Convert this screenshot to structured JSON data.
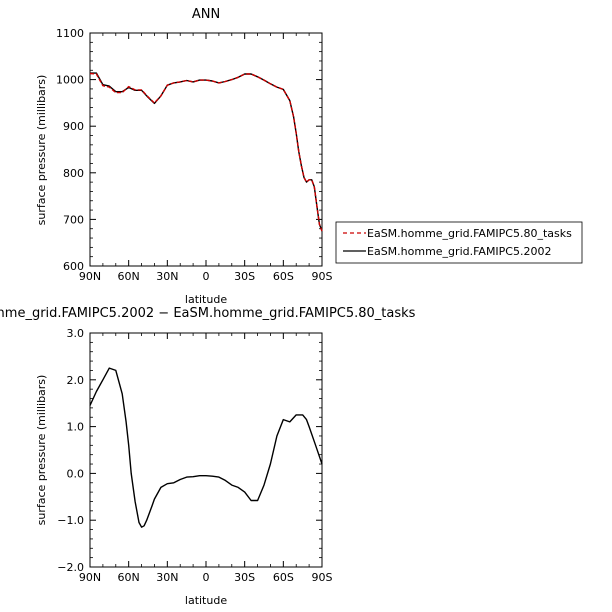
{
  "chart_data": [
    {
      "type": "line",
      "title": "ANN",
      "xlabel": "latitude",
      "ylabel": "surface pressure (millibars)",
      "ylim": [
        600,
        1100
      ],
      "yticks": [
        "600",
        "700",
        "800",
        "900",
        "1000",
        "1100"
      ],
      "xlim": [
        -90,
        90
      ],
      "xticks": [
        "90N",
        "60N",
        "30N",
        "0",
        "30S",
        "60S",
        "90S"
      ],
      "x": [
        -90,
        -85,
        -80,
        -75,
        -70,
        -65,
        -60,
        -55,
        -50,
        -45,
        -40,
        -35,
        -30,
        -25,
        -20,
        -15,
        -10,
        -5,
        0,
        5,
        10,
        15,
        20,
        25,
        30,
        35,
        40,
        45,
        50,
        55,
        60,
        65,
        68,
        70,
        72,
        74,
        76,
        78,
        80,
        82,
        84,
        86,
        88,
        90
      ],
      "series": [
        {
          "name": "EaSM.homme_grid.FAMIPC5.80_tasks",
          "color": "#cc0000",
          "dash": "dashed",
          "values": [
            1013,
            1012,
            987,
            984,
            972,
            972,
            985,
            978,
            978,
            963,
            950,
            965,
            988,
            993,
            995,
            998,
            995,
            999,
            999,
            997,
            993,
            996,
            1000,
            1005,
            1012,
            1012,
            1006,
            999,
            991,
            984,
            979,
            955,
            920,
            885,
            845,
            815,
            790,
            780,
            785,
            785,
            770,
            730,
            690,
            675
          ]
        },
        {
          "name": "EaSM.homme_grid.FAMIPC5.2002",
          "color": "#000000",
          "dash": "solid",
          "values": [
            1014,
            1014,
            989,
            986,
            974,
            974,
            983,
            977,
            977,
            962,
            949,
            965,
            988,
            993,
            995,
            998,
            995,
            999,
            999,
            997,
            993,
            996,
            1000,
            1005,
            1012,
            1012,
            1006,
            999,
            991,
            984,
            979,
            955,
            920,
            885,
            845,
            815,
            790,
            780,
            785,
            785,
            770,
            730,
            690,
            675
          ]
        }
      ],
      "legend_position": "right"
    },
    {
      "type": "line",
      "title": "nme_grid.FAMIPC5.2002 − EaSM.homme_grid.FAMIPC5.80_tasks",
      "xlabel": "latitude",
      "ylabel": "surface pressure (millibars)",
      "ylim": [
        -2.0,
        3.0
      ],
      "yticks": [
        "−2.0",
        "−1.0",
        "0.0",
        "1.0",
        "2.0",
        "3.0"
      ],
      "xlim": [
        -90,
        90
      ],
      "xticks": [
        "90N",
        "60N",
        "30N",
        "0",
        "30S",
        "60S",
        "90S"
      ],
      "x": [
        -90,
        -85,
        -80,
        -75,
        -70,
        -65,
        -62,
        -60,
        -58,
        -55,
        -52,
        -50,
        -48,
        -46,
        -44,
        -42,
        -40,
        -35,
        -30,
        -25,
        -20,
        -15,
        -10,
        -5,
        0,
        5,
        10,
        15,
        20,
        25,
        30,
        35,
        40,
        45,
        50,
        55,
        60,
        65,
        70,
        75,
        78,
        80,
        85,
        90
      ],
      "series": [
        {
          "name": "",
          "color": "#000000",
          "dash": "solid",
          "values": [
            1.45,
            1.75,
            2.0,
            2.25,
            2.2,
            1.7,
            1.1,
            0.6,
            0.0,
            -0.6,
            -1.05,
            -1.15,
            -1.12,
            -1.0,
            -0.85,
            -0.7,
            -0.55,
            -0.3,
            -0.22,
            -0.2,
            -0.13,
            -0.08,
            -0.07,
            -0.05,
            -0.05,
            -0.06,
            -0.08,
            -0.15,
            -0.25,
            -0.3,
            -0.4,
            -0.58,
            -0.58,
            -0.25,
            0.2,
            0.8,
            1.15,
            1.1,
            1.25,
            1.25,
            1.15,
            1.0,
            0.6,
            0.2
          ]
        }
      ]
    }
  ]
}
